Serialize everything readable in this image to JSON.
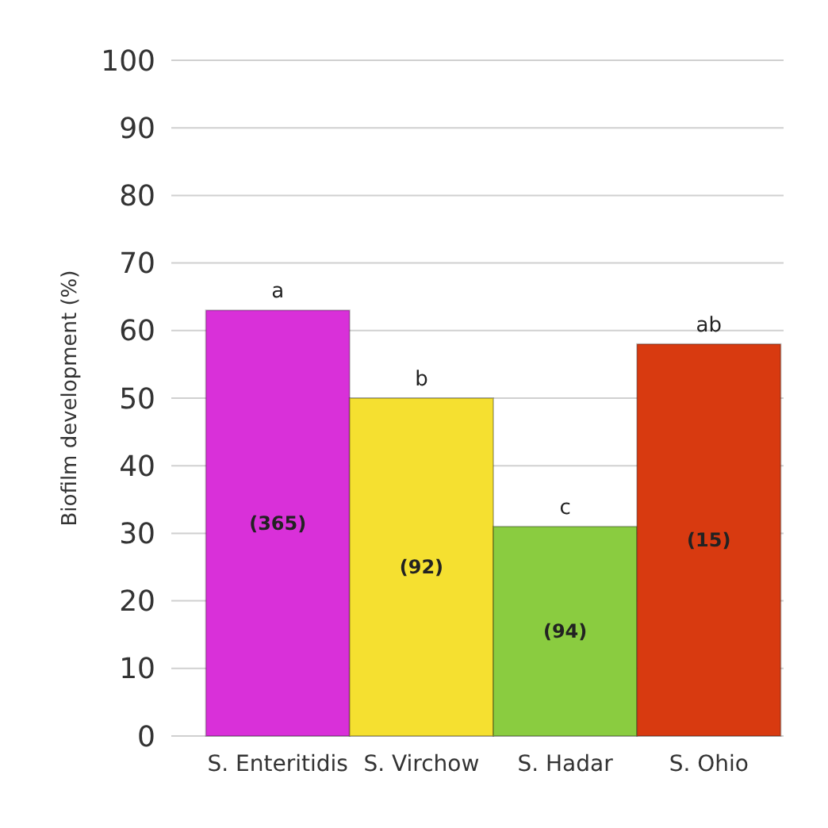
{
  "chart_data": {
    "type": "bar",
    "ylabel": "Biofilm development (%)",
    "categories": [
      "S. Enteritidis",
      "S. Virchow",
      "S. Hadar",
      "S. Ohio"
    ],
    "values": [
      63,
      50,
      31,
      58
    ],
    "colors": [
      "#d930d9",
      "#f5e030",
      "#8acc40",
      "#d83a10"
    ],
    "ylim": [
      0,
      100
    ],
    "yticks": [
      0,
      10,
      20,
      30,
      40,
      50,
      60,
      70,
      80,
      90,
      100
    ],
    "grid": "y",
    "annotations": [
      {
        "text": "a",
        "x": "S. Enteritidis",
        "y": 63
      },
      {
        "text": "b",
        "x": "S. Virchow",
        "y": 50
      },
      {
        "text": "c",
        "x": "S. Hadar",
        "y": 31
      },
      {
        "text": "ab",
        "x": "S. Ohio",
        "y": 58
      },
      "(365)",
      "(92)",
      "(94)",
      "(15)"
    ]
  }
}
